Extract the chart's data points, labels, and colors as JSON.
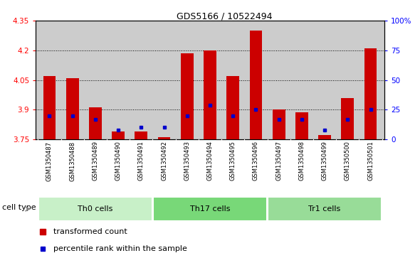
{
  "title": "GDS5166 / 10522494",
  "samples": [
    "GSM1350487",
    "GSM1350488",
    "GSM1350489",
    "GSM1350490",
    "GSM1350491",
    "GSM1350492",
    "GSM1350493",
    "GSM1350494",
    "GSM1350495",
    "GSM1350496",
    "GSM1350497",
    "GSM1350498",
    "GSM1350499",
    "GSM1350500",
    "GSM1350501"
  ],
  "red_values": [
    4.07,
    4.06,
    3.91,
    3.79,
    3.79,
    3.76,
    4.185,
    4.2,
    4.07,
    4.3,
    3.9,
    3.885,
    3.77,
    3.96,
    4.21
  ],
  "blue_values_pct": [
    20,
    20,
    17,
    8,
    10,
    10,
    20,
    29,
    20,
    25,
    17,
    17,
    8,
    17,
    25
  ],
  "y_min": 3.75,
  "y_max": 4.35,
  "y_ticks": [
    3.75,
    3.9,
    4.05,
    4.2,
    4.35
  ],
  "y_right_ticks": [
    0,
    25,
    50,
    75,
    100
  ],
  "groups": [
    {
      "label": "Th0 cells",
      "start": 0,
      "end": 4,
      "color": "#c8f0c8"
    },
    {
      "label": "Th17 cells",
      "start": 5,
      "end": 9,
      "color": "#78d878"
    },
    {
      "label": "Tr1 cells",
      "start": 10,
      "end": 14,
      "color": "#98dc98"
    }
  ],
  "bar_color": "#cc0000",
  "dot_color": "#0000cc",
  "plot_bg": "#cccccc",
  "tick_bg": "#cccccc",
  "legend_items": [
    "transformed count",
    "percentile rank within the sample"
  ],
  "cell_type_label": "cell type"
}
